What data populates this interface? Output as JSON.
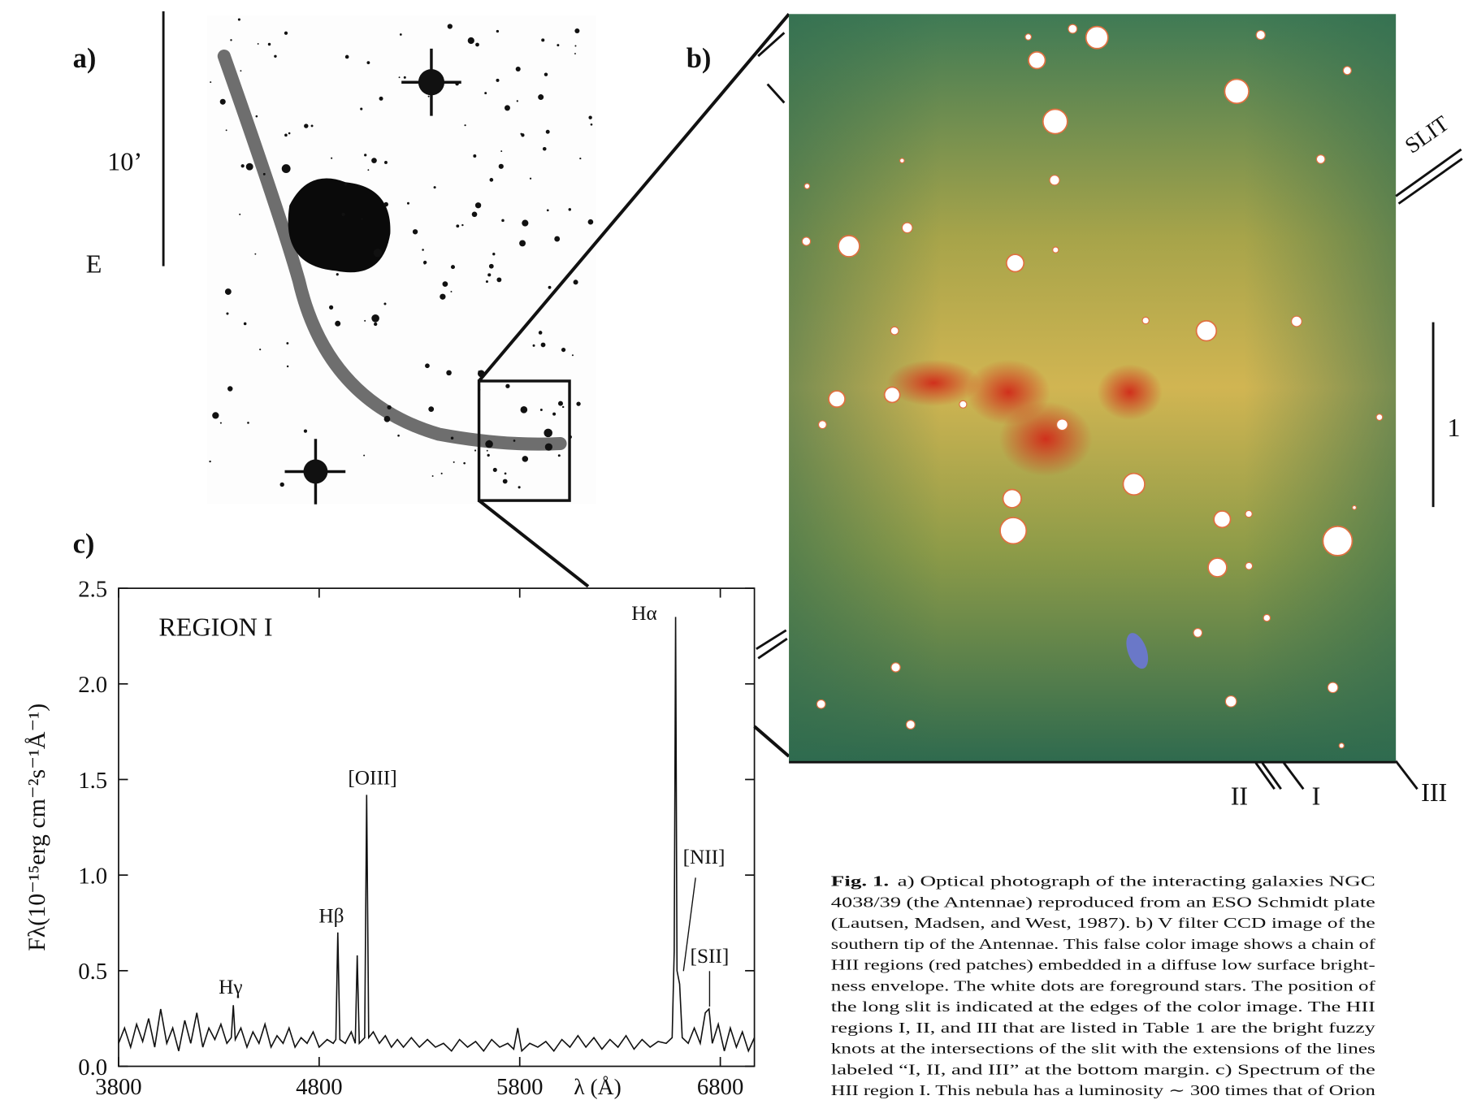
{
  "panels": {
    "a": "a)",
    "b": "b)",
    "c": "c)"
  },
  "panel_a": {
    "scale": "10’",
    "direction": "E"
  },
  "panel_b": {
    "slit": "SLIT",
    "scale": "1",
    "regions": [
      "II",
      "I",
      "III"
    ]
  },
  "chart_data": {
    "type": "line",
    "title": "REGION I",
    "x_label": "λ (Å)",
    "y_label": "Fλ(10⁻¹⁵erg cm⁻²s⁻¹Å⁻¹)",
    "xlim": [
      3800,
      6970
    ],
    "ylim": [
      0,
      2.5
    ],
    "xticks": [
      3800,
      4800,
      5800,
      6800
    ],
    "yticks": [
      {
        "value": 0,
        "label": "0.0"
      },
      0.5,
      {
        "value": 1,
        "label": "1.0"
      },
      1.5,
      {
        "value": 2,
        "label": "2.0"
      },
      2.5
    ],
    "annotations": [
      "Hγ",
      "Hβ",
      "[OIII]",
      "Hα",
      "[NII]",
      "[SII]"
    ],
    "x": [
      3800,
      3830,
      3860,
      3890,
      3920,
      3950,
      3980,
      4010,
      4040,
      4070,
      4100,
      4130,
      4160,
      4190,
      4220,
      4250,
      4280,
      4310,
      4340,
      4362,
      4372,
      4382,
      4410,
      4440,
      4470,
      4500,
      4530,
      4560,
      4590,
      4620,
      4650,
      4680,
      4710,
      4740,
      4770,
      4800,
      4840,
      4870,
      4883,
      4893,
      4903,
      4930,
      4960,
      4980,
      4990,
      5000,
      5027,
      5037,
      5047,
      5070,
      5100,
      5130,
      5160,
      5190,
      5220,
      5260,
      5300,
      5340,
      5380,
      5420,
      5460,
      5500,
      5540,
      5580,
      5620,
      5660,
      5700,
      5740,
      5770,
      5790,
      5810,
      5850,
      5890,
      5930,
      5970,
      6010,
      6050,
      6090,
      6130,
      6170,
      6210,
      6250,
      6290,
      6330,
      6370,
      6410,
      6450,
      6490,
      6530,
      6560,
      6570,
      6577,
      6584,
      6597,
      6610,
      6640,
      6670,
      6700,
      6725,
      6744,
      6760,
      6790,
      6820,
      6850,
      6880,
      6910,
      6940,
      6970
    ],
    "series": [
      {
        "color": "#111111",
        "values": [
          0.12,
          0.2,
          0.1,
          0.22,
          0.13,
          0.25,
          0.1,
          0.3,
          0.12,
          0.2,
          0.08,
          0.24,
          0.12,
          0.28,
          0.1,
          0.2,
          0.14,
          0.22,
          0.12,
          0.15,
          0.32,
          0.14,
          0.2,
          0.1,
          0.18,
          0.12,
          0.22,
          0.1,
          0.16,
          0.12,
          0.2,
          0.1,
          0.15,
          0.12,
          0.18,
          0.1,
          0.14,
          0.12,
          0.14,
          0.7,
          0.14,
          0.12,
          0.18,
          0.12,
          0.58,
          0.12,
          0.15,
          1.42,
          0.15,
          0.18,
          0.12,
          0.16,
          0.1,
          0.14,
          0.1,
          0.15,
          0.1,
          0.14,
          0.1,
          0.12,
          0.08,
          0.14,
          0.1,
          0.13,
          0.08,
          0.14,
          0.1,
          0.12,
          0.09,
          0.2,
          0.08,
          0.12,
          0.1,
          0.13,
          0.08,
          0.14,
          0.1,
          0.16,
          0.1,
          0.15,
          0.09,
          0.14,
          0.1,
          0.16,
          0.09,
          0.14,
          0.1,
          0.13,
          0.12,
          0.15,
          0.6,
          2.35,
          0.5,
          0.43,
          0.15,
          0.12,
          0.2,
          0.12,
          0.28,
          0.3,
          0.12,
          0.22,
          0.08,
          0.2,
          0.1,
          0.18,
          0.08,
          0.15
        ]
      }
    ]
  },
  "caption": {
    "label": "Fig. 1.",
    "lines": [
      "a) Optical photograph of the interacting galaxies NGC",
      "4038/39 (the Antennae) reproduced from an ESO Schmidt plate",
      "(Lautsen, Madsen, and West, 1987). b) V filter CCD image of the",
      "southern tip of the Antennae. This false color image shows a chain of",
      "HII regions (red patches) embedded in a diffuse low surface bright-",
      "ness envelope. The white dots are foreground stars. The position of",
      "the long slit is indicated at the edges of the color image. The HII",
      "regions I, II, and III that are listed in Table 1 are the bright fuzzy",
      "knots at the intersections of the slit with the extensions of the lines",
      "labeled “I, II, and III” at the bottom margin. c) Spectrum of the",
      "HII region I. This nebula has a luminosity ∼ 300 times that of Orion"
    ]
  }
}
